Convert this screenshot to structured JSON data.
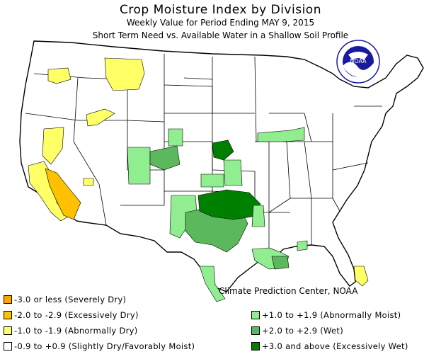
{
  "title": "Crop Moisture Index by Division",
  "subtitle1": "Weekly Value for Period Ending MAY  9, 2015",
  "subtitle2": "Short Term Need vs. Available Water in a Shallow Soil Profile",
  "credit": "Climate Prediction Center, NOAA",
  "logo": {
    "text": "NOAA",
    "ring_text": "NATIONAL OCEANIC AND ATMOSPHERIC ADMINISTRATION · U.S. DEPARTMENT OF COMMERCE"
  },
  "colors": {
    "severely_dry": "#ffa500",
    "excessively_dry": "#ffc000",
    "abnormally_dry": "#ffff66",
    "near_normal": "#ffffff",
    "abnormally_moist": "#90ee90",
    "wet": "#5cb85c",
    "excessively_wet": "#008000"
  },
  "legend_left": [
    {
      "label": "-3.0 or less (Severely Dry)",
      "color": "#ffa500"
    },
    {
      "label": "-2.0 to -2.9 (Excessively Dry)",
      "color": "#ffc000"
    },
    {
      "label": "-1.0 to -1.9 (Abnormally Dry)",
      "color": "#ffff66"
    },
    {
      "label": "-0.9 to +0.9 (Slightly Dry/Favorably Moist)",
      "color": "#ffffff"
    }
  ],
  "legend_right": [
    {
      "label": "+1.0 to +1.9 (Abnormally Moist)",
      "color": "#90ee90"
    },
    {
      "label": "+2.0 to +2.9 (Wet)",
      "color": "#5cb85c"
    },
    {
      "label": "+3.0 and above (Excessively Wet)",
      "color": "#008000"
    }
  ]
}
